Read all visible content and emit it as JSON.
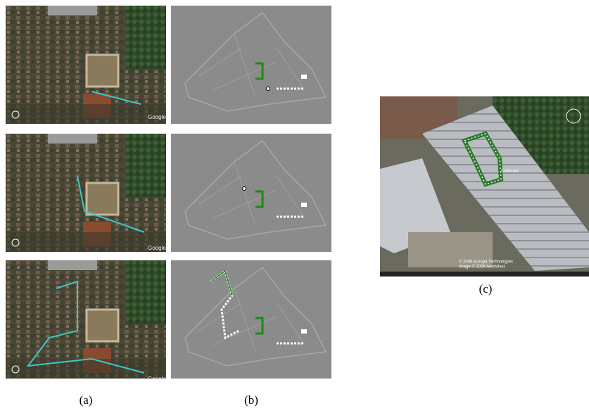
{
  "captions": [
    "(a)",
    "(b)",
    "(c)"
  ],
  "panel_a": {
    "watermarks": [
      "Google",
      "Google",
      "Google"
    ]
  },
  "panel_c": {
    "place_label": "Civilound",
    "copyright": [
      "© 2006 Europa Technologies",
      "Image © 2006 AeroWest"
    ]
  }
}
